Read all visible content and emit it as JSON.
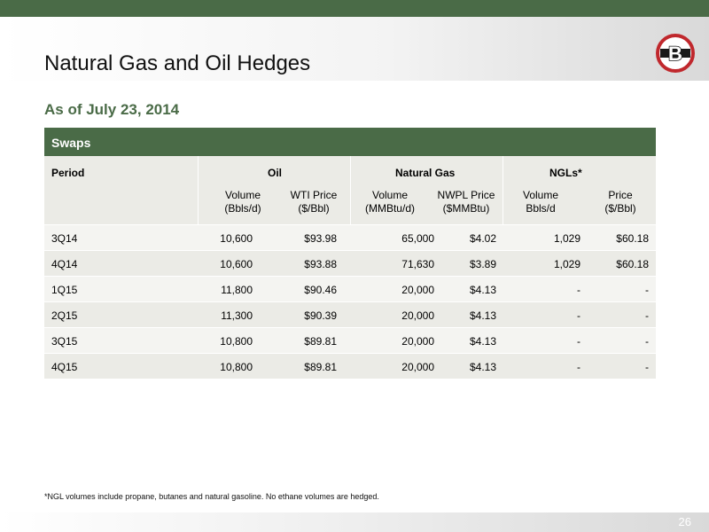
{
  "header": {
    "title": "Natural Gas and Oil Hedges",
    "subtitle": "As of July 23, 2014",
    "logo_letter": "B"
  },
  "table": {
    "section_label": "Swaps",
    "groups": {
      "period": "Period",
      "oil": "Oil",
      "gas": "Natural Gas",
      "ngl": "NGLs*"
    },
    "subheaders": [
      {
        "line1": "Volume",
        "line2": "(Bbls/d)"
      },
      {
        "line1": "WTI Price",
        "line2": "($/Bbl)"
      },
      {
        "line1": "Volume",
        "line2": "(MMBtu/d)"
      },
      {
        "line1": "NWPL Price",
        "line2": "($MMBtu)"
      },
      {
        "line1": "Volume",
        "line2": "Bbls/d"
      },
      {
        "line1": "Price",
        "line2": "($/Bbl)"
      }
    ],
    "rows": [
      {
        "period": "3Q14",
        "oil_vol": "10,600",
        "oil_price": "$93.98",
        "gas_vol": "65,000",
        "gas_price": "$4.02",
        "ngl_vol": "1,029",
        "ngl_price": "$60.18"
      },
      {
        "period": "4Q14",
        "oil_vol": "10,600",
        "oil_price": "$93.88",
        "gas_vol": "71,630",
        "gas_price": "$3.89",
        "ngl_vol": "1,029",
        "ngl_price": "$60.18"
      },
      {
        "period": "1Q15",
        "oil_vol": "11,800",
        "oil_price": "$90.46",
        "gas_vol": "20,000",
        "gas_price": "$4.13",
        "ngl_vol": "-",
        "ngl_price": "-"
      },
      {
        "period": "2Q15",
        "oil_vol": "11,300",
        "oil_price": "$90.39",
        "gas_vol": "20,000",
        "gas_price": "$4.13",
        "ngl_vol": "-",
        "ngl_price": "-"
      },
      {
        "period": "3Q15",
        "oil_vol": "10,800",
        "oil_price": "$89.81",
        "gas_vol": "20,000",
        "gas_price": "$4.13",
        "ngl_vol": "-",
        "ngl_price": "-"
      },
      {
        "period": "4Q15",
        "oil_vol": "10,800",
        "oil_price": "$89.81",
        "gas_vol": "20,000",
        "gas_price": "$4.13",
        "ngl_vol": "-",
        "ngl_price": "-"
      }
    ]
  },
  "footer": {
    "footnote": "*NGL volumes include propane, butanes and natural gasoline. No ethane volumes are hedged.",
    "page_number": "26"
  },
  "colors": {
    "brand_green": "#4a6b47",
    "logo_red": "#c0282d"
  }
}
